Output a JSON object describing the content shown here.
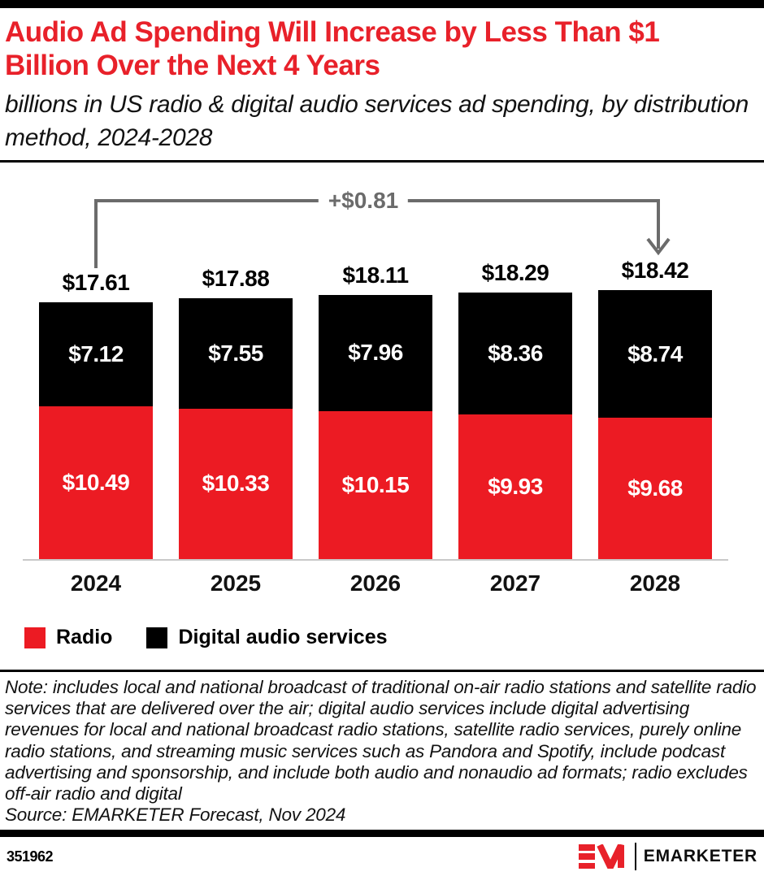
{
  "header": {
    "title": "Audio Ad Spending Will Increase by Less Than $1 Billion Over the Next 4 Years",
    "subtitle": "billions in US radio & digital audio services ad spending, by distribution method, 2024-2028"
  },
  "chart_data": {
    "type": "bar",
    "stacked": true,
    "title": "Audio Ad Spending Will Increase by Less Than $1 Billion Over the Next 4 Years",
    "categories": [
      "2024",
      "2025",
      "2026",
      "2027",
      "2028"
    ],
    "series": [
      {
        "name": "Radio",
        "color": "#ec1b23",
        "values": [
          10.49,
          10.33,
          10.15,
          9.93,
          9.68
        ]
      },
      {
        "name": "Digital audio services",
        "color": "#000000",
        "values": [
          7.12,
          7.55,
          7.96,
          8.36,
          8.74
        ]
      }
    ],
    "totals": [
      17.61,
      17.88,
      18.11,
      18.29,
      18.42
    ],
    "value_prefix": "$",
    "annotation": {
      "label": "+$0.81",
      "from_category": "2024",
      "to_category": "2028",
      "color": "#6b6b6b"
    },
    "legend_position": "bottom",
    "grid": false,
    "y_axis_visible": false,
    "ylabel": "",
    "xlabel": ""
  },
  "legend": {
    "items": [
      {
        "label": "Radio",
        "color": "#ec1b23"
      },
      {
        "label": "Digital audio services",
        "color": "#000000"
      }
    ]
  },
  "note": "Note: includes local and national broadcast of traditional on-air radio stations and satellite radio services that are delivered over the air; digital audio services include digital advertising revenues for local and national broadcast radio stations, satellite radio services, purely online radio stations, and streaming music services such as Pandora and Spotify, include podcast advertising and sponsorship, and include both audio and nonaudio ad formats; radio excludes off-air radio and digital",
  "source": "Source: EMARKETER Forecast, Nov 2024",
  "footer": {
    "chart_id": "351962",
    "brand": "EMARKETER"
  }
}
